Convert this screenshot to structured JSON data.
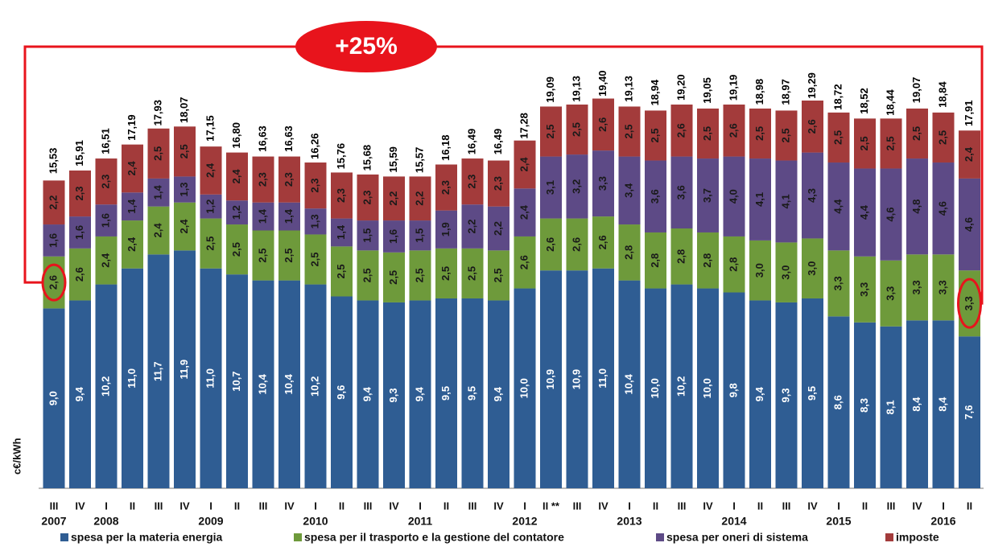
{
  "chart_data": {
    "type": "stacked_bar",
    "annotation": "+25%",
    "y_label": "c€/kWh",
    "categories": [
      "III",
      "IV",
      "I",
      "II",
      "III",
      "IV",
      "I",
      "II",
      "III",
      "IV",
      "I",
      "II",
      "III",
      "IV",
      "I",
      "II",
      "III",
      "IV",
      "I",
      "II **",
      "III",
      "IV",
      "I",
      "II",
      "III",
      "IV",
      "I",
      "II",
      "III",
      "IV",
      "I",
      "II",
      "III",
      "IV",
      "I",
      "II"
    ],
    "years": [
      "2007",
      null,
      "2008",
      null,
      null,
      null,
      "2009",
      null,
      null,
      null,
      "2010",
      null,
      null,
      null,
      "2011",
      null,
      null,
      null,
      "2012",
      null,
      null,
      null,
      "2013",
      null,
      null,
      null,
      "2014",
      null,
      null,
      null,
      "2015",
      null,
      null,
      null,
      "2016",
      null
    ],
    "series": [
      {
        "name": "spesa per la materia energia",
        "color": "#2f5d93",
        "values": [
          9.0,
          9.4,
          10.2,
          11.0,
          11.7,
          11.9,
          11.0,
          10.7,
          10.4,
          10.4,
          10.2,
          9.6,
          9.4,
          9.3,
          9.4,
          9.5,
          9.5,
          9.4,
          10.0,
          10.9,
          10.9,
          11.0,
          10.4,
          10.0,
          10.2,
          10.0,
          9.8,
          9.4,
          9.3,
          9.5,
          8.6,
          8.3,
          8.1,
          8.4,
          8.4,
          7.6
        ],
        "value_labels": [
          "9,0",
          "9,4",
          "10,2",
          "11,0",
          "11,7",
          "11,9",
          "11,0",
          "10,7",
          "10,4",
          "10,4",
          "10,2",
          "9,6",
          "9,4",
          "9,3",
          "9,4",
          "9,5",
          "9,5",
          "9,4",
          "10,0",
          "10,9",
          "10,9",
          "11,0",
          "10,4",
          "10,0",
          "10,2",
          "10,0",
          "9,8",
          "9,4",
          "9,3",
          "9,5",
          "8,6",
          "8,3",
          "8,1",
          "8,4",
          "8,4",
          "7,6"
        ]
      },
      {
        "name": "spesa per il trasporto e la gestione del contatore",
        "color": "#6e9a3b",
        "values": [
          2.6,
          2.6,
          2.4,
          2.4,
          2.4,
          2.4,
          2.5,
          2.5,
          2.5,
          2.5,
          2.5,
          2.5,
          2.5,
          2.5,
          2.5,
          2.5,
          2.5,
          2.5,
          2.6,
          2.6,
          2.6,
          2.6,
          2.8,
          2.8,
          2.8,
          2.8,
          2.8,
          3.0,
          3.0,
          3.0,
          3.3,
          3.3,
          3.3,
          3.3,
          3.3,
          3.3
        ],
        "value_labels": [
          "2,6",
          "2,6",
          "2,4",
          "2,4",
          "2,4",
          "2,4",
          "2,5",
          "2,5",
          "2,5",
          "2,5",
          "2,5",
          "2,5",
          "2,5",
          "2,5",
          "2,5",
          "2,5",
          "2,5",
          "2,5",
          "2,6",
          "2,6",
          "2,6",
          "2,6",
          "2,8",
          "2,8",
          "2,8",
          "2,8",
          "2,8",
          "3,0",
          "3,0",
          "3,0",
          "3,3",
          "3,3",
          "3,3",
          "3,3",
          "3,3",
          "3,3"
        ]
      },
      {
        "name": "spesa per oneri di sistema",
        "color": "#5d4a86",
        "values": [
          1.6,
          1.6,
          1.6,
          1.4,
          1.4,
          1.3,
          1.2,
          1.2,
          1.4,
          1.4,
          1.3,
          1.4,
          1.5,
          1.6,
          1.5,
          1.9,
          2.2,
          2.2,
          2.4,
          3.1,
          3.2,
          3.3,
          3.4,
          3.6,
          3.6,
          3.7,
          4.0,
          4.1,
          4.1,
          4.3,
          4.4,
          4.4,
          4.6,
          4.8,
          4.6,
          4.6
        ],
        "value_labels": [
          "1,6",
          "1,6",
          "1,6",
          "1,4",
          "1,4",
          "1,3",
          "1,2",
          "1,2",
          "1,4",
          "1,4",
          "1,3",
          "1,4",
          "1,5",
          "1,6",
          "1,5",
          "1,9",
          "2,2",
          "2,2",
          "2,4",
          "3,1",
          "3,2",
          "3,3",
          "3,4",
          "3,6",
          "3,6",
          "3,7",
          "4,0",
          "4,1",
          "4,1",
          "4,3",
          "4,4",
          "4,4",
          "4,6",
          "4,8",
          "4,6",
          "4,6"
        ]
      },
      {
        "name": "imposte",
        "color": "#a33b3b",
        "values": [
          2.2,
          2.3,
          2.3,
          2.4,
          2.5,
          2.5,
          2.4,
          2.4,
          2.3,
          2.3,
          2.3,
          2.3,
          2.3,
          2.2,
          2.2,
          2.3,
          2.3,
          2.3,
          2.4,
          2.5,
          2.5,
          2.6,
          2.5,
          2.5,
          2.6,
          2.5,
          2.6,
          2.5,
          2.5,
          2.6,
          2.5,
          2.5,
          2.5,
          2.5,
          2.5,
          2.4
        ],
        "value_labels": [
          "2,2",
          "2,3",
          "2,3",
          "2,4",
          "2,5",
          "2,5",
          "2,4",
          "2,4",
          "2,3",
          "2,3",
          "2,3",
          "2,3",
          "2,3",
          "2,2",
          "2,2",
          "2,3",
          "2,3",
          "2,3",
          "2,4",
          "2,5",
          "2,5",
          "2,6",
          "2,5",
          "2,5",
          "2,6",
          "2,5",
          "2,6",
          "2,5",
          "2,5",
          "2,6",
          "2,5",
          "2,5",
          "2,5",
          "2,5",
          "2,5",
          "2,4"
        ]
      }
    ],
    "totals": {
      "values": [
        15.53,
        15.91,
        16.51,
        17.19,
        17.93,
        18.07,
        17.15,
        16.8,
        16.63,
        16.63,
        16.26,
        15.76,
        15.68,
        15.59,
        15.57,
        16.18,
        16.49,
        16.49,
        17.28,
        19.09,
        19.13,
        19.4,
        19.13,
        18.94,
        19.2,
        19.05,
        19.19,
        18.98,
        18.97,
        19.29,
        18.72,
        18.52,
        18.44,
        19.07,
        18.84,
        17.91
      ],
      "value_labels": [
        "15,53",
        "15,91",
        "16,51",
        "17,19",
        "17,93",
        "18,07",
        "17,15",
        "16,80",
        "16,63",
        "16,63",
        "16,26",
        "15,76",
        "15,68",
        "15,59",
        "15,57",
        "16,18",
        "16,49",
        "16,49",
        "17,28",
        "19,09",
        "19,13",
        "19,40",
        "19,13",
        "18,94",
        "19,20",
        "19,05",
        "19,19",
        "18,98",
        "18,97",
        "19,29",
        "18,72",
        "18,52",
        "18,44",
        "19,07",
        "18,84",
        "17,91"
      ]
    }
  }
}
